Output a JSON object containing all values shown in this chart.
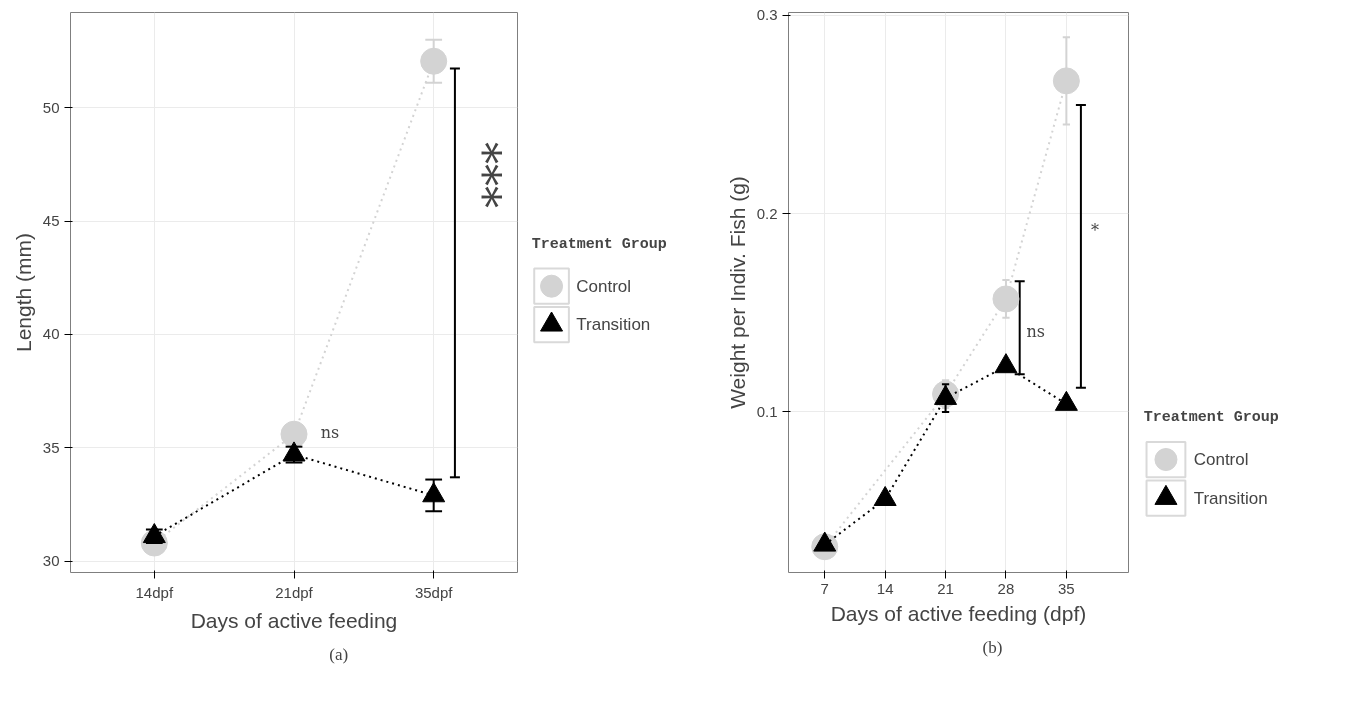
{
  "chart_data": [
    {
      "type": "line",
      "xlabel": "Days of active feeding",
      "ylabel": "Length (mm)",
      "legend_title": "Treatment Group",
      "categories": [
        "14dpf",
        "21dpf",
        "35dpf"
      ],
      "ylim": [
        29.5,
        54.2
      ],
      "yticks": [
        30,
        35,
        40,
        45,
        50
      ],
      "grid": true,
      "legend": "right",
      "line_style": "dotted",
      "series": [
        {
          "name": "Control",
          "color": "#d3d3d3",
          "marker": "circle",
          "values": [
            30.8,
            35.6,
            52.05
          ],
          "errors": [
            0.25,
            0.4,
            0.95
          ]
        },
        {
          "name": "Transition",
          "color": "#000000",
          "marker": "triangle",
          "values": [
            31.1,
            34.7,
            32.9
          ],
          "errors": [
            0.3,
            0.35,
            0.7
          ]
        }
      ],
      "annotations": [
        "ns",
        "***",
        "(a)"
      ]
    },
    {
      "type": "line",
      "xlabel": "Days of active feeding (dpf)",
      "ylabel": "Weight per Indiv. Fish (g)",
      "legend_title": "Treatment Group",
      "x": [
        7,
        14,
        21,
        28,
        35
      ],
      "xlim": [
        2.8,
        42.2
      ],
      "xticks": [
        7,
        14,
        21,
        28,
        35
      ],
      "ylim": [
        0.019,
        0.3015
      ],
      "yticks": [
        0.1,
        0.2,
        0.3
      ],
      "grid": true,
      "legend": "right",
      "line_style": "dotted",
      "series": [
        {
          "name": "Control",
          "color": "#d3d3d3",
          "marker": "circle",
          "values": [
            0.032,
            null,
            0.109,
            0.157,
            0.267
          ],
          "errors": [
            null,
            null,
            0.007,
            0.0095,
            0.022
          ]
        },
        {
          "name": "Transition",
          "color": "#000000",
          "marker": "triangle",
          "values": [
            0.033,
            0.056,
            0.107,
            0.123,
            0.104
          ],
          "errors": [
            null,
            null,
            0.007,
            null,
            null
          ]
        }
      ],
      "annotations": [
        "ns",
        "*",
        "(b)"
      ]
    }
  ]
}
